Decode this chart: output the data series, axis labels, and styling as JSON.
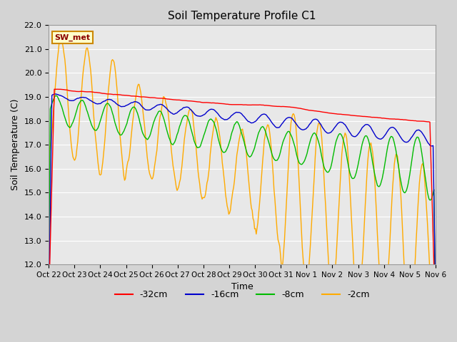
{
  "title": "Soil Temperature Profile C1",
  "xlabel": "Time",
  "ylabel": "Soil Temperature (C)",
  "ylim": [
    12.0,
    22.0
  ],
  "yticks": [
    12.0,
    13.0,
    14.0,
    15.0,
    16.0,
    17.0,
    18.0,
    19.0,
    20.0,
    21.0,
    22.0
  ],
  "xtick_labels": [
    "Oct 22",
    "Oct 23",
    "Oct 24",
    "Oct 25",
    "Oct 26",
    "Oct 27",
    "Oct 28",
    "Oct 29",
    "Oct 30",
    "Oct 31",
    "Nov 1",
    "Nov 2",
    "Nov 3",
    "Nov 4",
    "Nov 5",
    "Nov 6"
  ],
  "colors": {
    "red": "#ff0000",
    "blue": "#0000cc",
    "green": "#00bb00",
    "orange": "#ffaa00"
  },
  "legend_labels": [
    "-32cm",
    "-16cm",
    "-8cm",
    "-2cm"
  ],
  "annotation_text": "SW_met",
  "fig_bg_color": "#d4d4d4",
  "plot_bg_color": "#e8e8e8",
  "grid_color": "#ffffff",
  "n_points": 480
}
